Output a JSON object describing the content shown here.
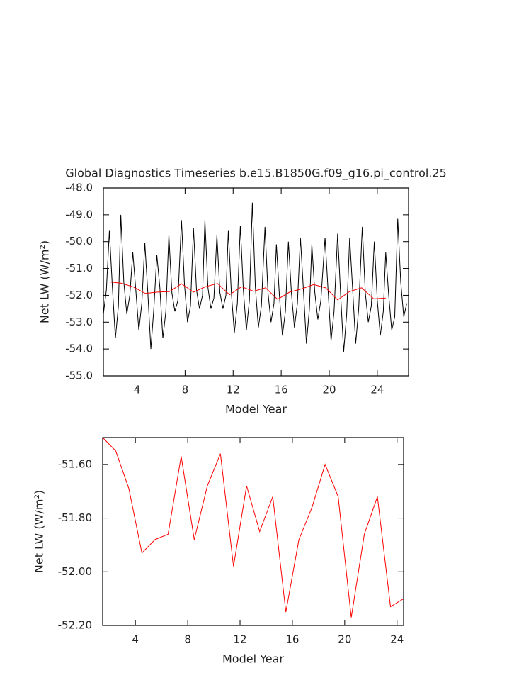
{
  "chart_data": [
    {
      "type": "line",
      "title": "Global Diagnostics Timeseries b.e15.B1850G.f09_g16.pi_control.25",
      "x_label": "Model Year",
      "y_label": "Net LW (W/m²)",
      "xlim": [
        1.2,
        26.6
      ],
      "ylim": [
        -55.0,
        -48.0
      ],
      "xticks": [
        4,
        8,
        12,
        16,
        20,
        24
      ],
      "yticks": [
        {
          "value": -55.0,
          "label": "-55.0"
        },
        {
          "value": -54.0,
          "label": "-54.0"
        },
        {
          "value": -53.0,
          "label": "-53.0"
        },
        {
          "value": -52.0,
          "label": "-52.0"
        },
        {
          "value": -51.0,
          "label": "-51.0"
        },
        {
          "value": -50.0,
          "label": "-50.0"
        },
        {
          "value": -49.0,
          "label": "-49.0"
        },
        {
          "value": -48.0,
          "label": "-48.0"
        }
      ],
      "series": [
        {
          "color": "#000000",
          "x": [
            1.2,
            1.45,
            1.7,
            1.95,
            2.2,
            2.45,
            2.65,
            2.9,
            3.15,
            3.4,
            3.65,
            3.9,
            4.15,
            4.4,
            4.65,
            4.9,
            5.15,
            5.4,
            5.65,
            5.9,
            6.15,
            6.4,
            6.65,
            6.9,
            7.15,
            7.4,
            7.7,
            7.95,
            8.2,
            8.45,
            8.7,
            8.95,
            9.2,
            9.45,
            9.65,
            9.9,
            10.15,
            10.4,
            10.65,
            10.9,
            11.15,
            11.4,
            11.6,
            11.85,
            12.1,
            12.35,
            12.6,
            12.85,
            13.1,
            13.35,
            13.6,
            13.85,
            14.1,
            14.35,
            14.65,
            14.9,
            15.15,
            15.4,
            15.6,
            15.85,
            16.1,
            16.35,
            16.6,
            16.85,
            17.1,
            17.35,
            17.6,
            17.85,
            18.1,
            18.35,
            18.55,
            18.8,
            19.05,
            19.3,
            19.65,
            19.9,
            20.15,
            20.4,
            20.7,
            20.95,
            21.2,
            21.45,
            21.7,
            21.95,
            22.2,
            22.45,
            22.75,
            23.0,
            23.25,
            23.5,
            23.75,
            24.0,
            24.25,
            24.5,
            24.7,
            24.95,
            25.2,
            25.45,
            25.7,
            25.95,
            26.2,
            26.45
          ],
          "values": [
            -52.7,
            -51.8,
            -49.6,
            -51.7,
            -53.6,
            -52.4,
            -49.0,
            -51.5,
            -52.7,
            -52.0,
            -50.4,
            -51.8,
            -53.3,
            -52.3,
            -50.05,
            -51.9,
            -54.0,
            -52.5,
            -50.5,
            -51.7,
            -53.6,
            -52.6,
            -49.75,
            -51.9,
            -52.6,
            -52.2,
            -49.2,
            -51.6,
            -53.0,
            -52.4,
            -49.5,
            -51.8,
            -52.5,
            -52.0,
            -49.2,
            -51.7,
            -52.5,
            -52.1,
            -49.75,
            -51.9,
            -52.5,
            -52.0,
            -49.6,
            -51.9,
            -53.4,
            -52.3,
            -49.4,
            -51.8,
            -53.3,
            -52.2,
            -48.55,
            -51.7,
            -53.2,
            -52.4,
            -49.45,
            -51.9,
            -53.0,
            -52.3,
            -50.1,
            -52.0,
            -53.5,
            -52.6,
            -50.0,
            -51.9,
            -53.2,
            -52.3,
            -49.85,
            -51.8,
            -53.8,
            -52.5,
            -50.1,
            -51.9,
            -52.9,
            -52.2,
            -49.85,
            -51.8,
            -53.7,
            -52.6,
            -49.7,
            -52.0,
            -54.1,
            -52.7,
            -49.85,
            -51.8,
            -53.8,
            -52.5,
            -49.45,
            -51.9,
            -53.0,
            -52.4,
            -50.0,
            -52.2,
            -53.5,
            -52.6,
            -50.4,
            -52.0,
            -53.3,
            -52.8,
            -49.15,
            -51.5,
            -52.8,
            -52.3
          ]
        },
        {
          "color": "#ff0000",
          "x": [
            1.7,
            2.7,
            3.7,
            4.7,
            5.7,
            6.7,
            7.7,
            8.7,
            9.7,
            10.7,
            11.7,
            12.7,
            13.7,
            14.7,
            15.7,
            16.7,
            17.7,
            18.7,
            19.7,
            20.7,
            21.7,
            22.7,
            23.7,
            24.7
          ],
          "values": [
            -51.5,
            -51.55,
            -51.69,
            -51.93,
            -51.88,
            -51.86,
            -51.57,
            -51.88,
            -51.68,
            -51.56,
            -51.98,
            -51.68,
            -51.85,
            -51.72,
            -52.15,
            -51.88,
            -51.76,
            -51.6,
            -51.72,
            -52.17,
            -51.86,
            -51.72,
            -52.13,
            -52.1
          ]
        }
      ]
    },
    {
      "type": "line",
      "x_label": "Model Year",
      "y_label": "Net LW (W/m²)",
      "xlim": [
        1.5,
        24.5
      ],
      "ylim": [
        -52.2,
        -51.5
      ],
      "xticks": [
        4,
        8,
        12,
        16,
        20,
        24
      ],
      "yticks": [
        {
          "value": -52.2,
          "label": "-52.20"
        },
        {
          "value": -52.0,
          "label": "-52.00"
        },
        {
          "value": -51.8,
          "label": "-51.80"
        },
        {
          "value": -51.6,
          "label": "-51.60"
        }
      ],
      "series": [
        {
          "color": "#ff0000",
          "x": [
            1.5,
            2.5,
            3.5,
            4.5,
            5.5,
            6.5,
            7.5,
            8.5,
            9.5,
            10.5,
            11.5,
            12.5,
            13.5,
            14.5,
            15.5,
            16.5,
            17.5,
            18.5,
            19.5,
            20.5,
            21.5,
            22.5,
            23.5,
            24.5
          ],
          "values": [
            -51.5,
            -51.55,
            -51.69,
            -51.93,
            -51.88,
            -51.86,
            -51.57,
            -51.88,
            -51.68,
            -51.56,
            -51.98,
            -51.68,
            -51.85,
            -51.72,
            -52.15,
            -51.88,
            -51.76,
            -51.6,
            -51.72,
            -52.17,
            -51.86,
            -51.72,
            -52.13,
            -52.1
          ]
        }
      ]
    }
  ]
}
